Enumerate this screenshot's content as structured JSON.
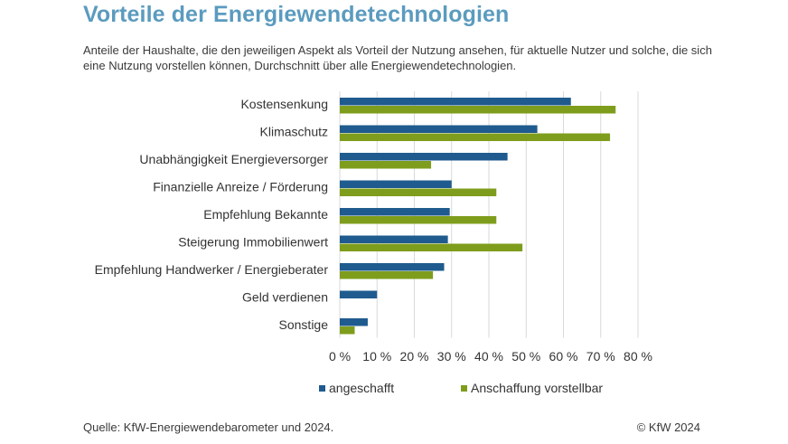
{
  "title": "Vorteile der Energiewendetechnologien",
  "subtitle": "Anteile der Haushalte, die den jeweiligen Aspekt als Vorteil der Nutzung ansehen, für aktuelle Nutzer und solche, die sich eine Nutzung vorstellen können, Durchschnitt über alle Energiewendetechnologien.",
  "footer": {
    "source": "Quelle: KfW-Energiewendebarometer und 2024.",
    "copyright": "© KfW 2024"
  },
  "colors": {
    "title": "#5b9bbf",
    "series1": "#1f5b8e",
    "series2": "#7f9d1d",
    "grid": "#d9d9d9"
  },
  "chart_data": {
    "type": "bar",
    "orientation": "horizontal",
    "categories": [
      "Kostensenkung",
      "Klimaschutz",
      "Unabhängigkeit Energieversorger",
      "Finanzielle Anreize / Förderung",
      "Empfehlung Bekannte",
      "Steigerung Immobilienwert",
      "Empfehlung Handwerker / Energieberater",
      "Geld verdienen",
      "Sonstige"
    ],
    "series": [
      {
        "name": "angeschafft",
        "values": [
          62,
          53,
          45,
          30,
          29.5,
          29,
          28,
          10,
          7.5
        ]
      },
      {
        "name": "Anschaffung vorstellbar",
        "values": [
          74,
          72.5,
          24.5,
          42,
          42,
          49,
          25,
          0,
          4
        ]
      }
    ],
    "xlim": [
      0,
      80
    ],
    "xticks": [
      "0 %",
      "10 %",
      "20 %",
      "30 %",
      "40 %",
      "50 %",
      "60 %",
      "70 %",
      "80 %"
    ],
    "xtick_values": [
      0,
      10,
      20,
      30,
      40,
      50,
      60,
      70,
      80
    ],
    "grid": true,
    "legend_position": "bottom"
  }
}
